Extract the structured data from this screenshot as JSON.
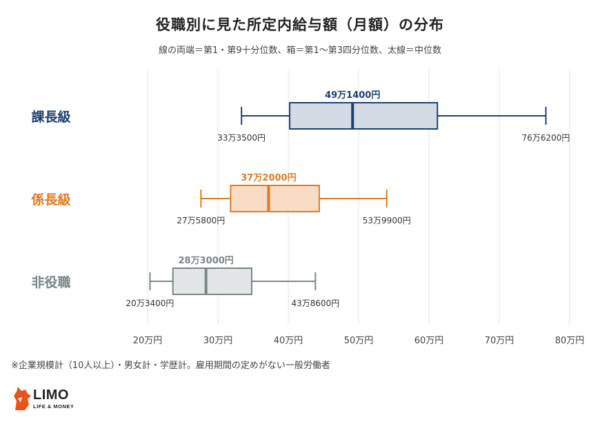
{
  "chart_data": {
    "type": "boxplot",
    "title": "役職別に見た所定内給与額（月額）の分布",
    "subtitle": "線の両端＝第1・第9十分位数、箱＝第1～第3四分位数、太線＝中位数",
    "xlabel": "",
    "ylabel": "",
    "x_unit": "万円",
    "xlim": [
      20,
      80
    ],
    "x_ticks": [
      20,
      30,
      40,
      50,
      60,
      70,
      80
    ],
    "x_tick_labels": [
      "20万円",
      "30万円",
      "40万円",
      "50万円",
      "60万円",
      "70万円",
      "80万円"
    ],
    "grid": true,
    "series": [
      {
        "name": "課長級",
        "color": "#1f3f6e",
        "fill": "#d4dbe5",
        "whisker_low": 33.35,
        "q1": 40.2,
        "median": 49.14,
        "q3": 61.2,
        "whisker_high": 76.62,
        "median_label": "49万1400円",
        "low_label": "33万3500円",
        "high_label": "76万6200円"
      },
      {
        "name": "係長級",
        "color": "#e07b22",
        "fill": "#f9dcc4",
        "whisker_low": 27.58,
        "q1": 31.8,
        "median": 37.2,
        "q3": 44.4,
        "whisker_high": 53.99,
        "median_label": "37万2000円",
        "low_label": "27万5800円",
        "high_label": "53万9900円"
      },
      {
        "name": "非役職",
        "color": "#7a8585",
        "fill": "#e3e6e6",
        "whisker_low": 20.34,
        "q1": 23.6,
        "median": 28.3,
        "q3": 34.8,
        "whisker_high": 43.86,
        "median_label": "28万3000円",
        "low_label": "20万3400円",
        "high_label": "43万8600円"
      }
    ]
  },
  "footnote": "※企業規模計（10人以上）・男女計・学歴計。雇用期間の定めがない一般労働者",
  "logo": {
    "name": "LIMO",
    "tagline": "LIFE & MONEY"
  },
  "colors": {
    "grid": "#e3e3e3",
    "tick_text": "#444444",
    "value_label_text": "#333333"
  }
}
